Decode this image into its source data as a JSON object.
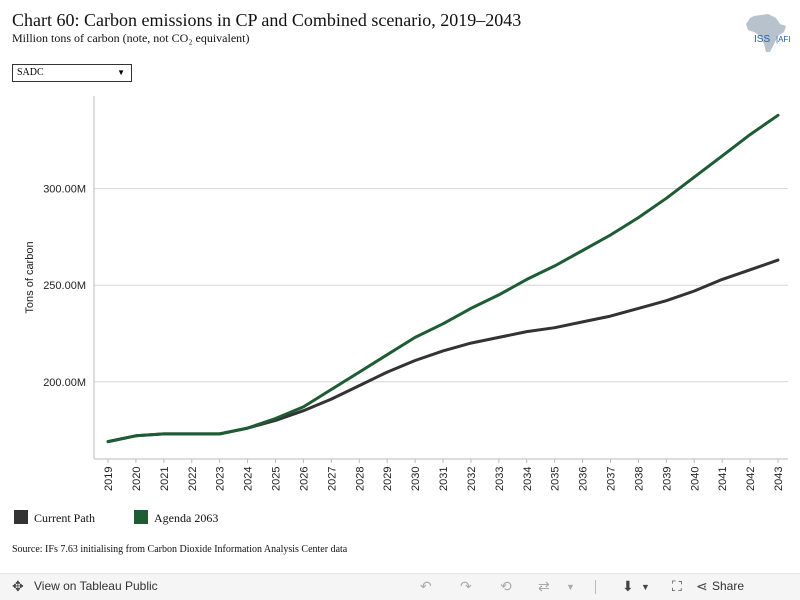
{
  "header": {
    "title": "Chart 60: Carbon emissions in CP and Combined scenario, 2019–2043",
    "subtitle": "Million tons of carbon (note, not CO₂ equivalent)",
    "logo_text": "ISS AFI"
  },
  "filter": {
    "selected": "SADC"
  },
  "chart_data": {
    "type": "line",
    "ylabel": "Tons of carbon",
    "x": [
      "2019",
      "2020",
      "2021",
      "2022",
      "2023",
      "2024",
      "2025",
      "2026",
      "2027",
      "2028",
      "2029",
      "2030",
      "2031",
      "2032",
      "2033",
      "2034",
      "2035",
      "2036",
      "2037",
      "2038",
      "2039",
      "2040",
      "2041",
      "2042",
      "2043"
    ],
    "y_ticks": [
      200,
      250,
      300
    ],
    "y_tick_labels": [
      "200.00M",
      "250.00M",
      "300.00M"
    ],
    "ylim": [
      160,
      348
    ],
    "grid": true,
    "series": [
      {
        "name": "Current Path",
        "color": "#333333",
        "values": [
          169,
          172,
          173,
          173,
          173,
          176,
          180,
          185,
          191,
          198,
          205,
          211,
          216,
          220,
          223,
          226,
          228,
          231,
          234,
          238,
          242,
          247,
          253,
          258,
          263
        ]
      },
      {
        "name": "Agenda 2063",
        "color": "#1e5c34",
        "values": [
          169,
          172,
          173,
          173,
          173,
          176,
          181,
          187,
          196,
          205,
          214,
          223,
          230,
          238,
          245,
          253,
          260,
          268,
          276,
          285,
          295,
          306,
          317,
          328,
          338
        ]
      }
    ]
  },
  "source": "Source: IFs 7.63 initialising from Carbon Dioxide Information Analysis Center data",
  "toolbar": {
    "view_label": "View on Tableau Public",
    "share_label": "Share",
    "icons": [
      "undo-icon",
      "redo-icon",
      "revert-icon",
      "refresh-icon",
      "download-icon",
      "fullscreen-icon",
      "share-icon"
    ]
  }
}
